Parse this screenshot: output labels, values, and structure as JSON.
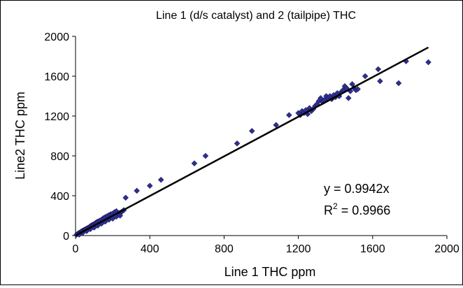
{
  "chart_data": {
    "type": "scatter",
    "title": "Line 1 (d/s catalyst) and 2 (tailpipe) THC",
    "xlabel": "Line 1 THC ppm",
    "ylabel": "Line2 THC ppm",
    "xlim": [
      0,
      2000
    ],
    "ylim": [
      0,
      2000
    ],
    "x_ticks": [
      "0",
      "400",
      "800",
      "1200",
      "1600",
      "2000"
    ],
    "y_ticks": [
      "0",
      "400",
      "800",
      "1200",
      "1600",
      "2000"
    ],
    "grid": false,
    "legend": "none",
    "marker_color": "#2e2e8f",
    "trendline": {
      "slope": 0.9942,
      "x_end": 1900
    },
    "annotation": {
      "equation": "y = 0.9942x",
      "r2_prefix": "R",
      "r2_sup": "2",
      "r2_value": " = 0.9966"
    },
    "points": [
      [
        5,
        8
      ],
      [
        10,
        15
      ],
      [
        15,
        22
      ],
      [
        20,
        28
      ],
      [
        25,
        30
      ],
      [
        30,
        40
      ],
      [
        35,
        45
      ],
      [
        40,
        50
      ],
      [
        45,
        55
      ],
      [
        50,
        60
      ],
      [
        55,
        65
      ],
      [
        60,
        70
      ],
      [
        65,
        75
      ],
      [
        70,
        80
      ],
      [
        75,
        85
      ],
      [
        80,
        95
      ],
      [
        85,
        100
      ],
      [
        90,
        105
      ],
      [
        95,
        110
      ],
      [
        100,
        115
      ],
      [
        105,
        120
      ],
      [
        110,
        130
      ],
      [
        115,
        135
      ],
      [
        120,
        140
      ],
      [
        130,
        150
      ],
      [
        140,
        160
      ],
      [
        150,
        175
      ],
      [
        160,
        185
      ],
      [
        170,
        195
      ],
      [
        180,
        205
      ],
      [
        190,
        215
      ],
      [
        200,
        220
      ],
      [
        210,
        235
      ],
      [
        220,
        245
      ],
      [
        230,
        210
      ],
      [
        240,
        230
      ],
      [
        250,
        240
      ],
      [
        260,
        255
      ],
      [
        270,
        380
      ],
      [
        330,
        450
      ],
      [
        400,
        500
      ],
      [
        460,
        560
      ],
      [
        640,
        725
      ],
      [
        700,
        800
      ],
      [
        870,
        925
      ],
      [
        950,
        1050
      ],
      [
        1080,
        1110
      ],
      [
        1150,
        1210
      ],
      [
        20,
        10
      ],
      [
        40,
        30
      ],
      [
        60,
        45
      ],
      [
        80,
        65
      ],
      [
        100,
        80
      ],
      [
        120,
        100
      ],
      [
        140,
        120
      ],
      [
        160,
        140
      ],
      [
        180,
        160
      ],
      [
        200,
        170
      ],
      [
        220,
        190
      ],
      [
        240,
        200
      ],
      [
        1200,
        1230
      ],
      [
        1210,
        1210
      ],
      [
        1220,
        1250
      ],
      [
        1230,
        1230
      ],
      [
        1240,
        1260
      ],
      [
        1250,
        1220
      ],
      [
        1260,
        1280
      ],
      [
        1270,
        1250
      ],
      [
        1280,
        1270
      ],
      [
        1290,
        1300
      ],
      [
        1300,
        1320
      ],
      [
        1310,
        1350
      ],
      [
        1320,
        1380
      ],
      [
        1330,
        1340
      ],
      [
        1340,
        1360
      ],
      [
        1350,
        1400
      ],
      [
        1360,
        1380
      ],
      [
        1370,
        1400
      ],
      [
        1380,
        1370
      ],
      [
        1390,
        1410
      ],
      [
        1400,
        1390
      ],
      [
        1410,
        1430
      ],
      [
        1420,
        1400
      ],
      [
        1430,
        1440
      ],
      [
        1440,
        1460
      ],
      [
        1450,
        1500
      ],
      [
        1460,
        1480
      ],
      [
        1470,
        1380
      ],
      [
        1480,
        1450
      ],
      [
        1490,
        1520
      ],
      [
        1500,
        1480
      ],
      [
        1510,
        1460
      ],
      [
        1520,
        1470
      ],
      [
        1560,
        1600
      ],
      [
        1630,
        1670
      ],
      [
        1640,
        1550
      ],
      [
        1740,
        1530
      ],
      [
        1780,
        1750
      ],
      [
        1900,
        1740
      ]
    ]
  }
}
